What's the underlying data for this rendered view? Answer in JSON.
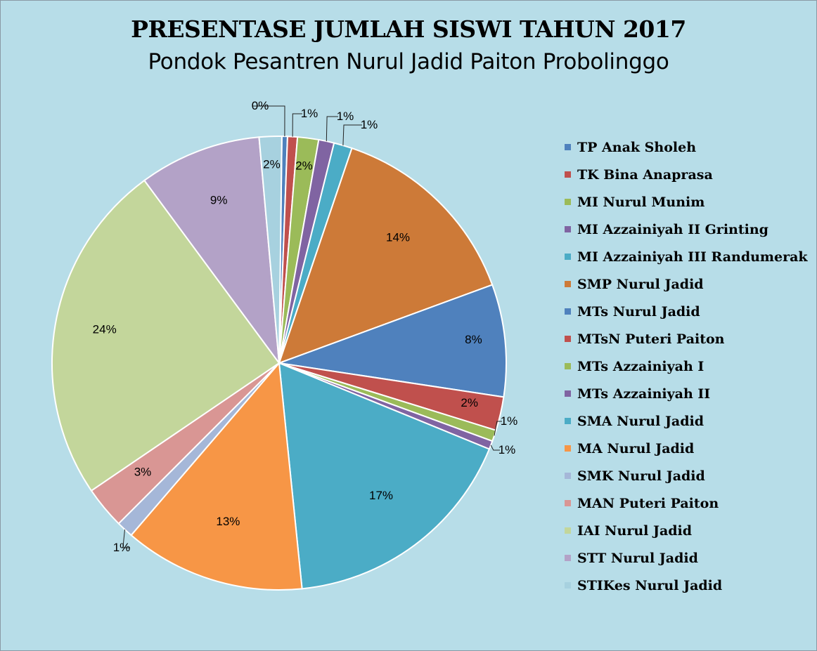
{
  "chart_data": {
    "type": "pie",
    "title": "PRESENTASE JUMLAH SISWI TAHUN 2017",
    "subtitle": "Pondok Pesantren Nurul Jadid Paiton Probolinggo",
    "legend_position": "right",
    "slices": [
      {
        "name": "TP Anak Sholeh",
        "value": 0.4,
        "label": "0%",
        "color": "#4f81bd"
      },
      {
        "name": "TK Bina Anaprasa",
        "value": 0.7,
        "label": "1%",
        "color": "#c0504d"
      },
      {
        "name": "MI Nurul Munim",
        "value": 1.5,
        "label": "2%",
        "color": "#9bbb59"
      },
      {
        "name": "MI Azzainiyah II Grinting",
        "value": 1.1,
        "label": "1%",
        "color": "#8064a2"
      },
      {
        "name": "MI Azzainiyah III Randumerak",
        "value": 1.3,
        "label": "1%",
        "color": "#4bacc6"
      },
      {
        "name": "SMP Nurul Jadid",
        "value": 14.2,
        "label": "14%",
        "color": "#f79646"
      },
      {
        "name": "MTs Nurul Jadid",
        "value": 8.0,
        "label": "8%",
        "color": "#4f81bd"
      },
      {
        "name": "MTsN Puteri Paiton",
        "value": 2.4,
        "label": "2%",
        "color": "#c0504d"
      },
      {
        "name": "MTs Azzainiyah I",
        "value": 0.8,
        "label": "1%",
        "color": "#9bbb59"
      },
      {
        "name": "MTs Azzainiyah II",
        "value": 0.6,
        "label": "1%",
        "color": "#8064a2"
      },
      {
        "name": "SMA Nurul Jadid",
        "value": 17.2,
        "label": "17%",
        "color": "#4bacc6"
      },
      {
        "name": "MA Nurul Jadid",
        "value": 12.9,
        "label": "13%",
        "color": "#f79646"
      },
      {
        "name": "SMK Nurul Jadid",
        "value": 1.2,
        "label": "1%",
        "color": "#a5b7d8"
      },
      {
        "name": "MAN Puteri Paiton",
        "value": 3.0,
        "label": "3%",
        "color": "#d99694"
      },
      {
        "name": "IAI Nurul Jadid",
        "value": 24.4,
        "label": "24%",
        "color": "#c3d69b"
      },
      {
        "name": "STT Nurul Jadid",
        "value": 8.7,
        "label": "9%",
        "color": "#b3a2c7"
      },
      {
        "name": "STIKes Nurul Jadid",
        "value": 1.6,
        "label": "2%",
        "color": "#a7d1df"
      }
    ]
  },
  "colors": {
    "background": "#b7dde8",
    "slice_fills": [
      "#4f81bd",
      "#c0504d",
      "#9bbb59",
      "#8064a2",
      "#4bacc6",
      "#cd7a38",
      "#4f81bd",
      "#c0504d",
      "#9bbb59",
      "#8064a2",
      "#4bacc6",
      "#f79646",
      "#a5b7d8",
      "#d99694",
      "#c3d69b",
      "#b3a2c7",
      "#a7d1df"
    ]
  }
}
